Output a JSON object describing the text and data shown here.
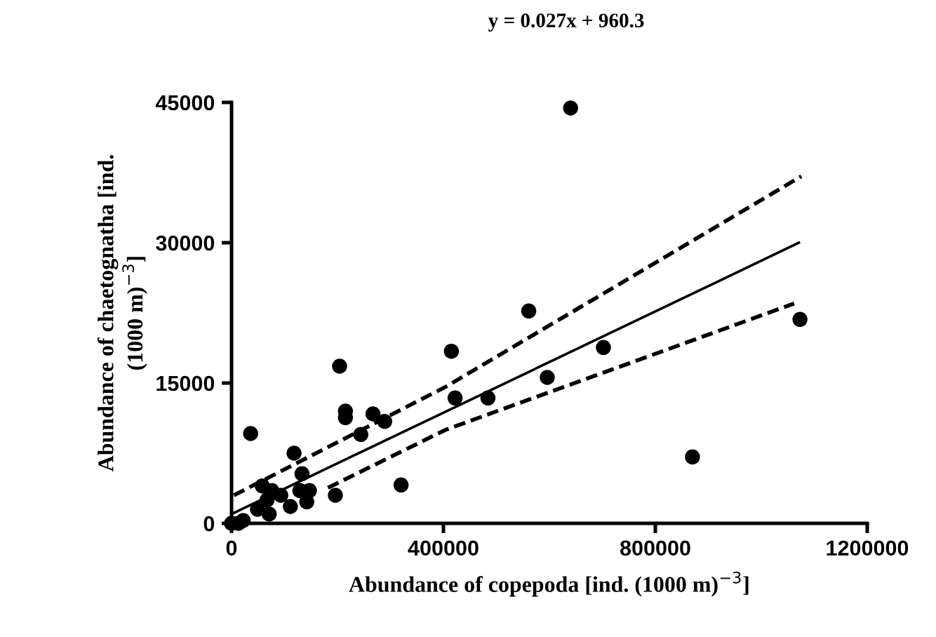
{
  "chart_data": {
    "type": "scatter",
    "title": "y = 0.027x + 960.3",
    "xlabel": "Abundance of copepoda [ind. (1000 m)$^{−3}$]",
    "ylabel": "Abundance of chaetognatha [ind.\n(1000 m)$^{−3}$]",
    "xlim": [
      0,
      1200000
    ],
    "xticks": [
      0,
      400000,
      800000,
      1200000
    ],
    "ylim": [
      0,
      45000
    ],
    "yticks": [
      0,
      15000,
      30000,
      45000
    ],
    "grid": false,
    "legend": false,
    "marker": "circle",
    "series": [
      {
        "color": "#000000",
        "x": [
          640000,
          1073000,
          561000,
          415000,
          702000,
          596000,
          870000,
          204000,
          422000,
          484000,
          215000,
          215000,
          267000,
          289000,
          244000,
          36000,
          320000,
          118000,
          196000,
          133000,
          58000,
          76000,
          67000,
          93000,
          111000,
          142000,
          147000,
          49000,
          71000,
          13000,
          0,
          22000,
          129000
        ],
        "values": [
          44400,
          21800,
          22700,
          18400,
          18800,
          15600,
          7100,
          16800,
          13400,
          13400,
          12000,
          11300,
          11700,
          10900,
          9500,
          9600,
          4100,
          7500,
          3000,
          5300,
          4000,
          3500,
          2500,
          3000,
          1800,
          2300,
          3500,
          1500,
          1000,
          0,
          0,
          300,
          3500
        ]
      },
      {
        "type": "line",
        "color": "#000000",
        "line_style": "solid",
        "marker": "none",
        "x": [
          0,
          1071000
        ],
        "values": [
          1000,
          30000
        ]
      },
      {
        "type": "line",
        "color": "#000000",
        "line_style": "dashed",
        "marker": "none",
        "x": [
          4400,
          404400,
          1075600
        ],
        "values": [
          3000,
          14600,
          37100
        ]
      },
      {
        "type": "line",
        "color": "#000000",
        "line_style": "dashed",
        "marker": "none",
        "x": [
          182000,
          404000,
          1062000
        ],
        "values": [
          3800,
          10000,
          23500
        ]
      }
    ]
  }
}
